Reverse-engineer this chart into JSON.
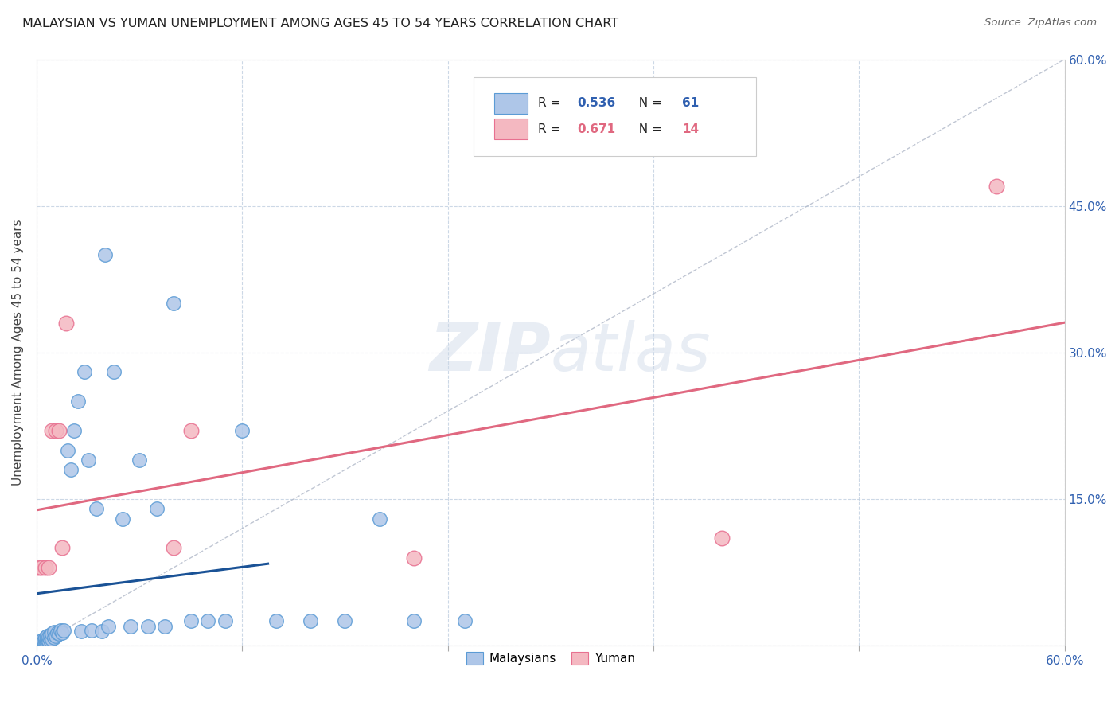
{
  "title": "MALAYSIAN VS YUMAN UNEMPLOYMENT AMONG AGES 45 TO 54 YEARS CORRELATION CHART",
  "source": "Source: ZipAtlas.com",
  "ylabel": "Unemployment Among Ages 45 to 54 years",
  "xlim": [
    0.0,
    0.6
  ],
  "ylim": [
    0.0,
    0.6
  ],
  "xticks": [
    0.0,
    0.12,
    0.24,
    0.36,
    0.48,
    0.6
  ],
  "yticks": [
    0.0,
    0.15,
    0.3,
    0.45,
    0.6
  ],
  "xticklabels": [
    "0.0%",
    "",
    "",
    "",
    "",
    "60.0%"
  ],
  "right_yticklabels": [
    "",
    "15.0%",
    "30.0%",
    "45.0%",
    "60.0%"
  ],
  "watermark": "ZIPatlas",
  "malaysians_color": "#aec6e8",
  "yuman_color": "#f4b8c1",
  "malaysians_edge": "#5b9bd5",
  "yuman_edge": "#e87090",
  "trend_malaysians_color": "#1a5296",
  "trend_yuman_color": "#e06880",
  "diagonal_color": "#b0b8c8",
  "mal_r": "0.536",
  "mal_n": "61",
  "yum_r": "0.671",
  "yum_n": "14",
  "malaysians_x": [
    0.001,
    0.001,
    0.002,
    0.002,
    0.002,
    0.003,
    0.003,
    0.003,
    0.004,
    0.004,
    0.004,
    0.005,
    0.005,
    0.005,
    0.006,
    0.006,
    0.006,
    0.007,
    0.007,
    0.008,
    0.008,
    0.009,
    0.009,
    0.01,
    0.01,
    0.011,
    0.012,
    0.013,
    0.014,
    0.015,
    0.016,
    0.018,
    0.02,
    0.022,
    0.024,
    0.026,
    0.028,
    0.03,
    0.032,
    0.035,
    0.038,
    0.04,
    0.042,
    0.045,
    0.05,
    0.055,
    0.06,
    0.065,
    0.07,
    0.075,
    0.08,
    0.09,
    0.1,
    0.11,
    0.12,
    0.14,
    0.16,
    0.18,
    0.2,
    0.22,
    0.25
  ],
  "malaysians_y": [
    0.001,
    0.002,
    0.001,
    0.003,
    0.004,
    0.002,
    0.004,
    0.005,
    0.002,
    0.003,
    0.005,
    0.003,
    0.006,
    0.008,
    0.004,
    0.007,
    0.01,
    0.005,
    0.009,
    0.006,
    0.011,
    0.007,
    0.012,
    0.008,
    0.014,
    0.01,
    0.013,
    0.012,
    0.016,
    0.013,
    0.016,
    0.2,
    0.18,
    0.22,
    0.25,
    0.015,
    0.28,
    0.19,
    0.016,
    0.14,
    0.015,
    0.4,
    0.02,
    0.28,
    0.13,
    0.02,
    0.19,
    0.02,
    0.14,
    0.02,
    0.35,
    0.025,
    0.025,
    0.025,
    0.22,
    0.025,
    0.025,
    0.025,
    0.13,
    0.025,
    0.025
  ],
  "yuman_x": [
    0.001,
    0.003,
    0.005,
    0.007,
    0.009,
    0.011,
    0.013,
    0.015,
    0.017,
    0.08,
    0.09,
    0.22,
    0.4,
    0.56
  ],
  "yuman_y": [
    0.08,
    0.08,
    0.08,
    0.08,
    0.22,
    0.22,
    0.22,
    0.1,
    0.33,
    0.1,
    0.22,
    0.09,
    0.11,
    0.47
  ],
  "mal_trend_x": [
    0.0,
    0.15
  ],
  "yum_trend_x": [
    0.0,
    0.6
  ]
}
